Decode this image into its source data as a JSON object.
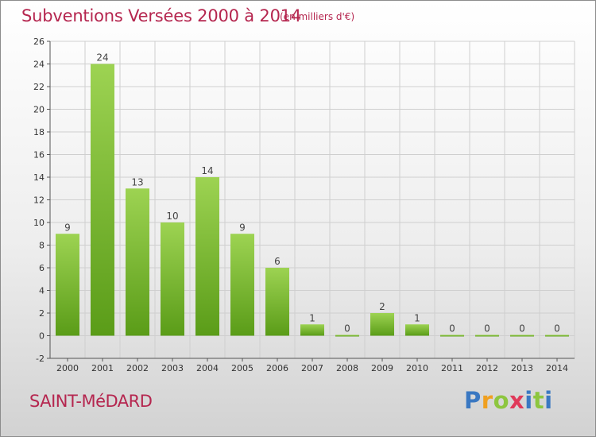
{
  "header": {
    "title": "Subventions Versées 2000 à 2014",
    "subtitle": "(en milliers d'€)"
  },
  "footer": {
    "commune": "SAINT-MéDARD",
    "brand": "Proxiti"
  },
  "colors": {
    "title": "#b5264f",
    "bar_top": "#9dd352",
    "bar_bottom": "#5a9c18",
    "grid": "#cfcfcf",
    "axis": "#555555"
  },
  "chart_data": {
    "type": "bar",
    "categories": [
      "2000",
      "2001",
      "2002",
      "2003",
      "2004",
      "2005",
      "2006",
      "2007",
      "2008",
      "2009",
      "2010",
      "2011",
      "2012",
      "2013",
      "2014"
    ],
    "values": [
      9,
      24,
      13,
      10,
      14,
      9,
      6,
      1,
      0,
      2,
      1,
      0,
      0,
      0,
      0
    ],
    "title": "Subventions Versées 2000 à 2014",
    "xlabel": "",
    "ylabel": "",
    "ylim": [
      -2,
      26
    ],
    "yticks": [
      -2,
      0,
      2,
      4,
      6,
      8,
      10,
      12,
      14,
      16,
      18,
      20,
      22,
      24,
      26
    ],
    "grid": true,
    "data_labels": true
  }
}
